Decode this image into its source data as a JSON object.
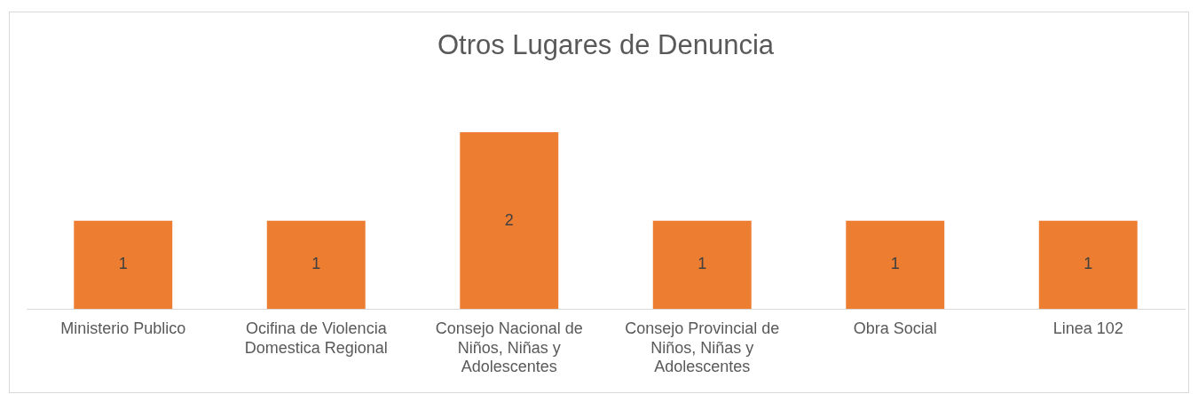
{
  "chart_data": {
    "type": "bar",
    "title": "Otros Lugares de Denuncia",
    "categories": [
      "Ministerio Publico",
      "Ocifina de Violencia Domestica Regional",
      "Consejo Nacional de Niños, Niñas y Adolescentes",
      "Consejo Provincial de Niños, Niñas y Adolescentes",
      "Obra Social",
      "Linea 102"
    ],
    "values": [
      1,
      1,
      2,
      1,
      1,
      1
    ],
    "color": "#ed7d31",
    "data_labels": true,
    "legend": false
  }
}
